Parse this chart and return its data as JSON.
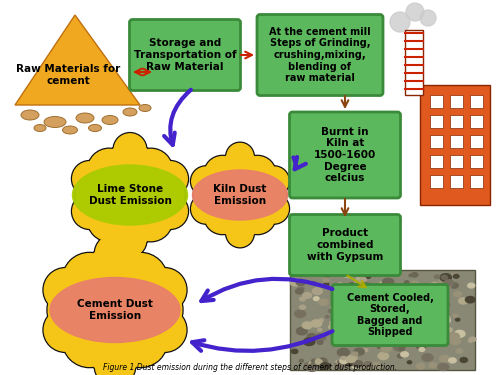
{
  "bg_color": "#ffffff",
  "green_box_color": "#5cb85c",
  "green_box_edge": "#3a8a3a",
  "arrow_color_red": "#cc2200",
  "arrow_color_blue": "#4422cc",
  "dust_yellow": "#f5c518",
  "dust_yellow2": "#e8a800",
  "dust_outline": "#111111",
  "label_lime": "#aacc00",
  "label_salmon": "#e8806a",
  "factory_color": "#e05a20",
  "smoke_color": "#cccccc",
  "raw_pile_color": "#f0a820",
  "raw_pile_edge": "#c07010",
  "raw_text": "Raw Materials for\ncement",
  "storage_text": "Storage and\nTransportation of\nRaw Material",
  "cement_mill_text": "At the cement mill\nSteps of Grinding,\ncrushing,mixing,\nblending of\nraw material",
  "kiln_text": "Burnt in\nKiln at\n1500-1600\nDegree\ncelcius",
  "product_text": "Product\ncombined\nwith Gypsum",
  "cooled_text": "Cement Cooled,\nStored,\nBagged and\nShipped",
  "limestone_label": "Lime Stone\nDust Emission",
  "kiln_dust_label": "Kiln Dust\nEmission",
  "cement_dust_label": "Cement Dust\nEmission",
  "title": "Figure 1 Dust emission during the different steps of cement dust production."
}
